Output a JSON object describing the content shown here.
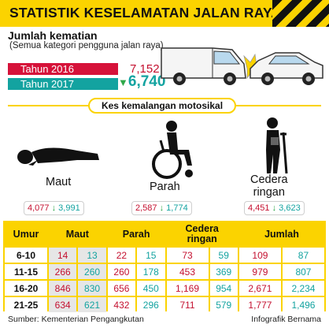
{
  "header": {
    "title": "STATISTIK KESELAMATAN JALAN RAYA"
  },
  "deaths": {
    "title": "Jumlah kematian",
    "subtitle": "(Semua kategori pengguna jalan raya)",
    "year_2016_label": "Tahun 2016",
    "year_2016_value": "7,152",
    "year_2017_label": "Tahun 2017",
    "year_2017_value": "6,740"
  },
  "section": {
    "label": "Kes kemalangan motosikal"
  },
  "categories": [
    {
      "label": "Maut",
      "v2016": "4,077",
      "v2017": "3,991"
    },
    {
      "label": "Parah",
      "v2016": "2,587",
      "v2017": "1,774"
    },
    {
      "label_line1": "Cedera",
      "label_line2": "ringan",
      "v2016": "4,451",
      "v2017": "3,623"
    }
  ],
  "table": {
    "headers": [
      "Umur",
      "Maut",
      "Parah",
      "Cedera ringan",
      "Jumlah"
    ],
    "header_cedera_line1": "Cedera",
    "header_cedera_line2": "ringan",
    "rows": [
      {
        "age": "6-10",
        "maut16": "14",
        "maut17": "13",
        "parah16": "22",
        "parah17": "15",
        "ced16": "73",
        "ced17": "59",
        "jum16": "109",
        "jum17": "87"
      },
      {
        "age": "11-15",
        "maut16": "266",
        "maut17": "260",
        "parah16": "260",
        "parah17": "178",
        "ced16": "453",
        "ced17": "369",
        "jum16": "979",
        "jum17": "807"
      },
      {
        "age": "16-20",
        "maut16": "846",
        "maut17": "830",
        "parah16": "656",
        "parah17": "450",
        "ced16": "1,169",
        "ced17": "954",
        "jum16": "2,671",
        "jum17": "2,234"
      },
      {
        "age": "21-25",
        "maut16": "634",
        "maut17": "621",
        "parah16": "432",
        "parah17": "296",
        "ced16": "711",
        "ced17": "579",
        "jum16": "1,777",
        "jum17": "1,496"
      }
    ]
  },
  "footer": {
    "source": "Sumber: Kementerian Pengangkutan",
    "credit": "Infografik Bernama"
  },
  "colors": {
    "yellow": "#fbd300",
    "red": "#c4102f",
    "teal": "#13a3a0",
    "green_arrow": "#2fa84a"
  },
  "icons": [
    "hazard-stripes",
    "van-crash-icon",
    "car-crash-icon",
    "lying-person-icon",
    "wheelchair-person-icon",
    "crutch-person-icon",
    "down-arrow-icon"
  ]
}
